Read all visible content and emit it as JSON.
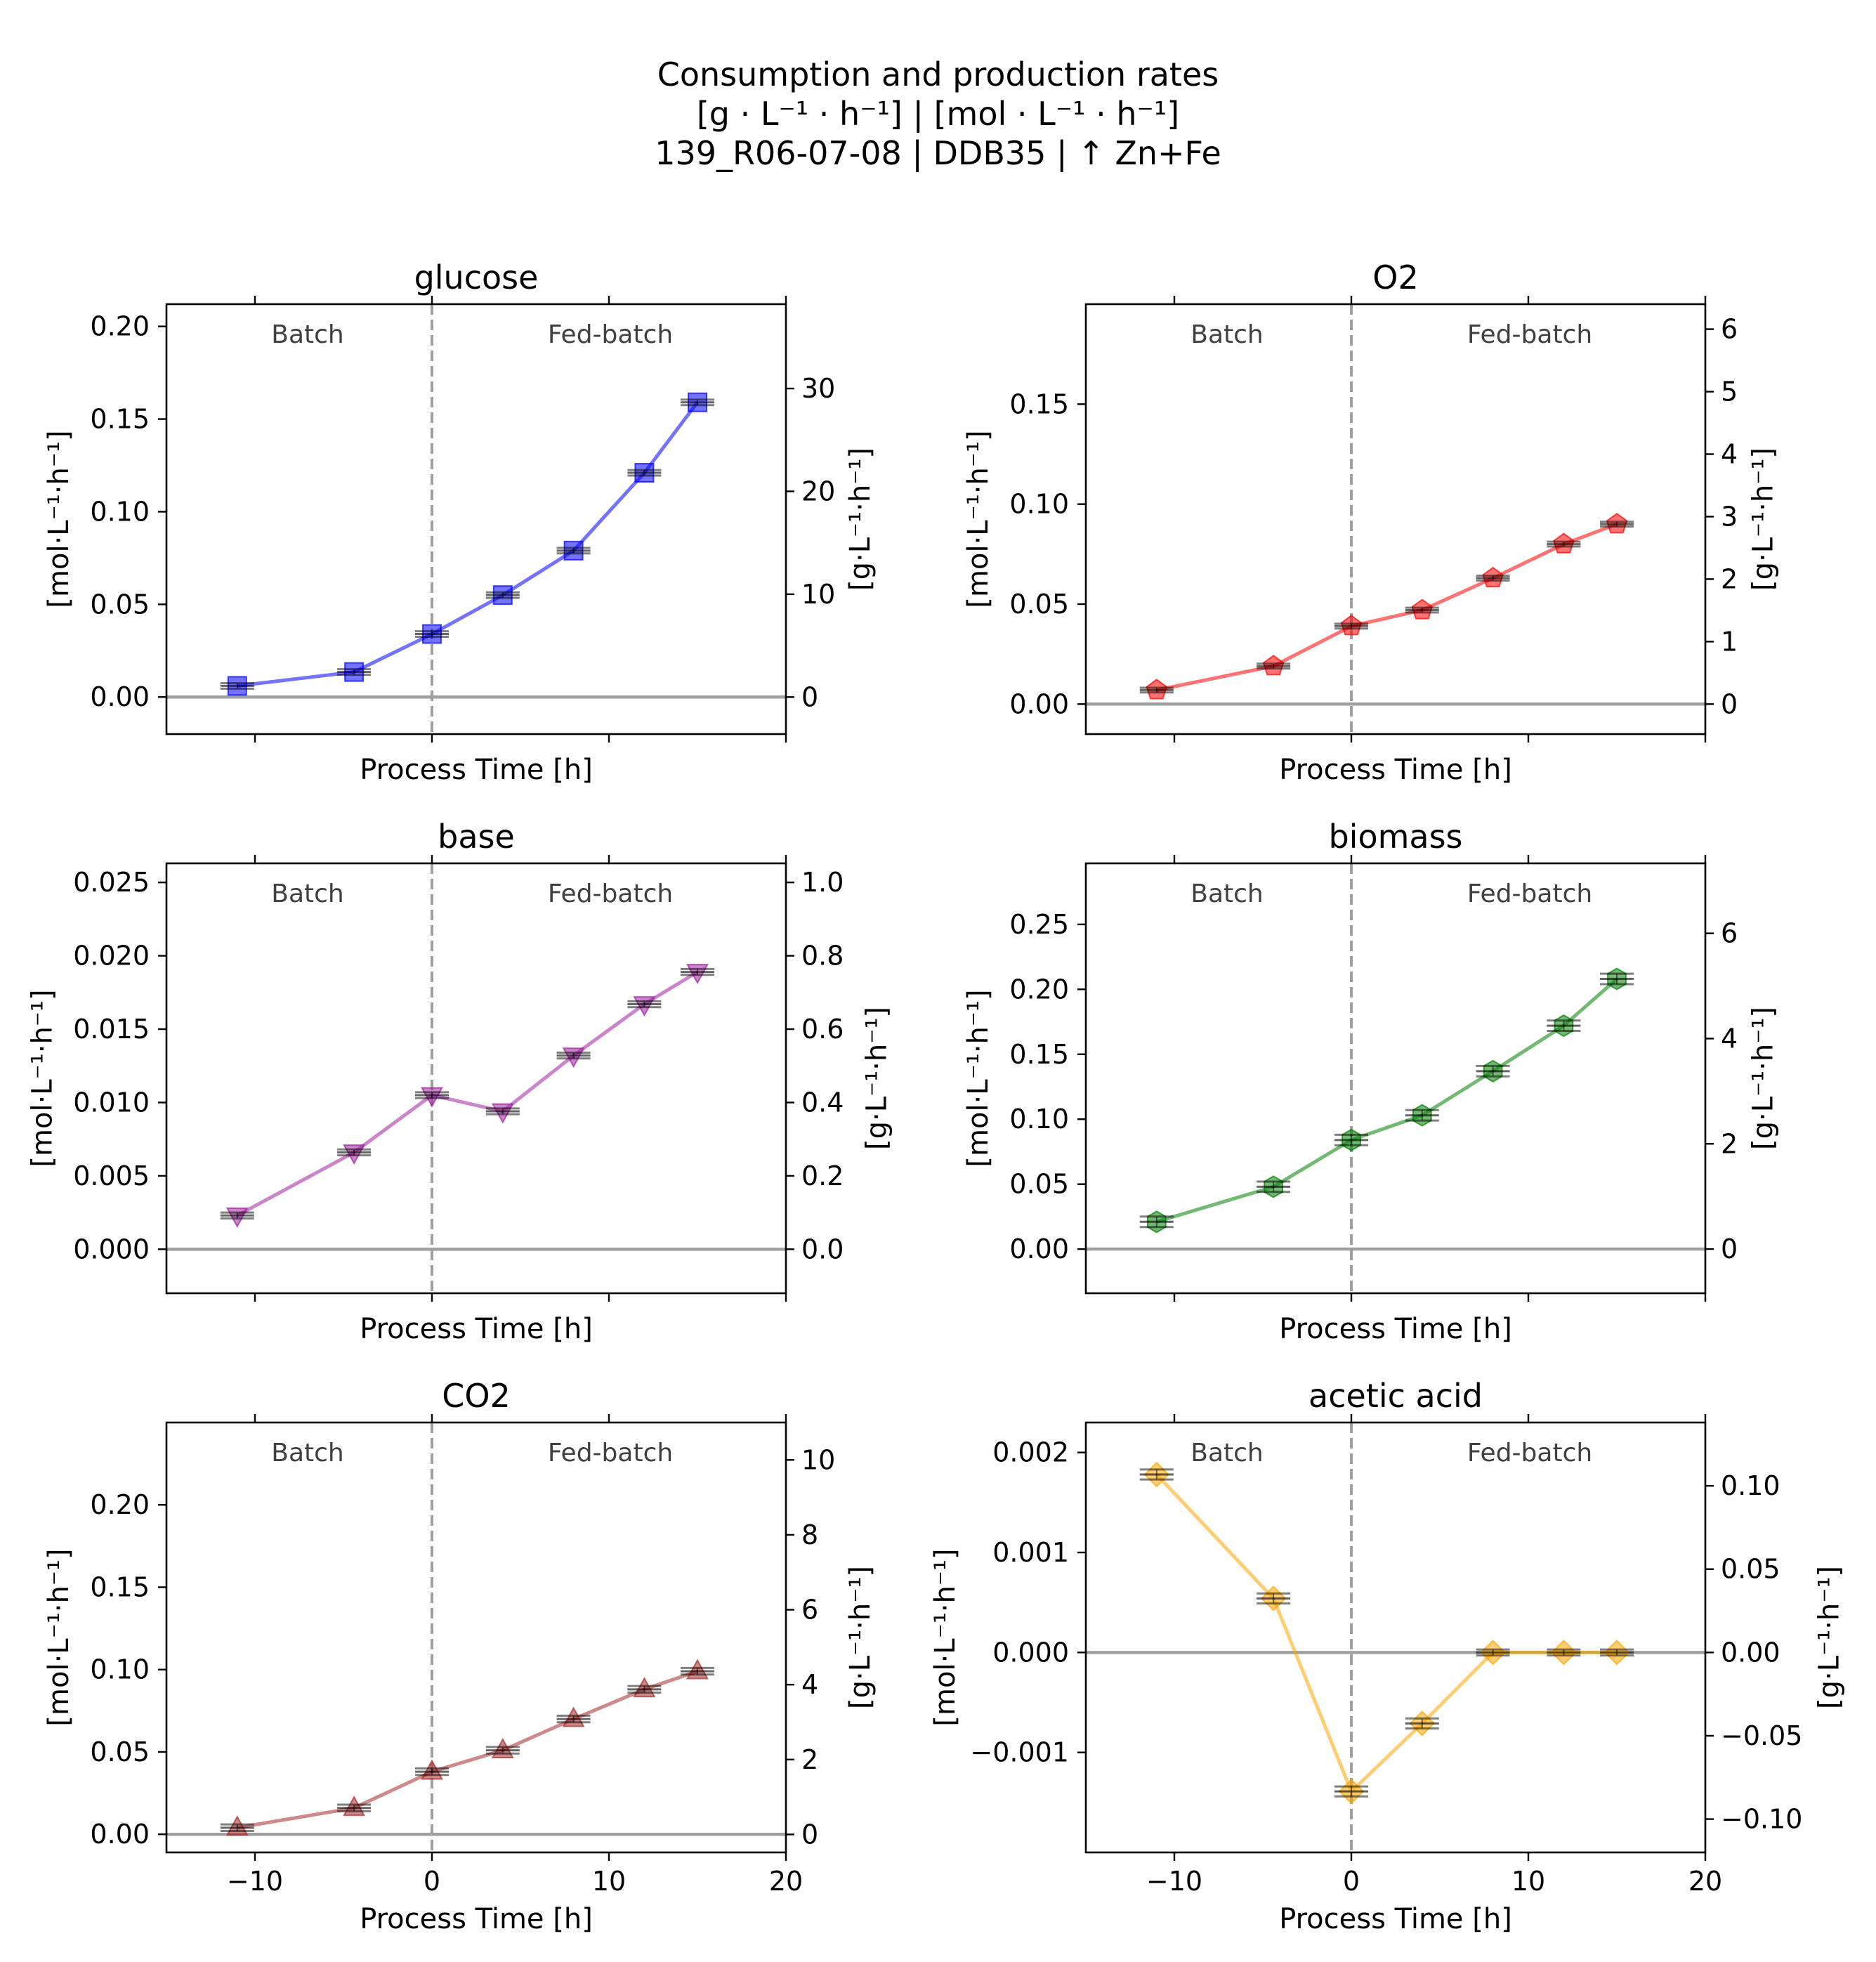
{
  "figure": {
    "title_lines": [
      "Consumption and production rates",
      "[g · L⁻¹ · h⁻¹]    |    [mol · L⁻¹ · h⁻¹]",
      "139_R06-07-08  |  DDB35  |  ↑ Zn+Fe"
    ]
  },
  "chart_data": [
    {
      "type": "line",
      "title": "glucose",
      "xlabel": "Process Time [h]",
      "ylabel": "[mol·L⁻¹·h⁻¹]",
      "y2label": "[g·L⁻¹·h⁻¹]",
      "xlim": [
        -15,
        20
      ],
      "xticks": [
        -10,
        0,
        10,
        20
      ],
      "xtick_labels_visible": false,
      "ylim": [
        -0.02,
        0.212
      ],
      "yticks": [
        0.0,
        0.05,
        0.1,
        0.15,
        0.2
      ],
      "ytick_labels": [
        "0.00",
        "0.05",
        "0.10",
        "0.15",
        "0.20"
      ],
      "y2lim": [
        -3.6,
        38.2
      ],
      "y2ticks": [
        0,
        10,
        20,
        30
      ],
      "y2tick_labels": [
        "0",
        "10",
        "20",
        "30"
      ],
      "phase_boundary_x": 0,
      "phase_labels": [
        "Batch",
        "Fed-batch"
      ],
      "color": "#0000ff",
      "marker": "square",
      "series": [
        {
          "x": [
            -11,
            -4.4,
            0,
            4,
            8,
            12,
            15
          ],
          "values": [
            0.006,
            0.0135,
            0.034,
            0.055,
            0.079,
            0.121,
            0.159
          ]
        }
      ],
      "errors": [
        0.0015,
        0.0015,
        0.0015,
        0.0015,
        0.0015,
        0.0015,
        0.0015
      ]
    },
    {
      "type": "line",
      "title": "O2",
      "xlabel": "Process Time [h]",
      "ylabel": "[mol·L⁻¹·h⁻¹]",
      "y2label": "[g·L⁻¹·h⁻¹]",
      "xlim": [
        -15,
        20
      ],
      "xticks": [
        -10,
        0,
        10,
        20
      ],
      "xtick_labels_visible": false,
      "ylim": [
        -0.015,
        0.2
      ],
      "yticks": [
        0.0,
        0.05,
        0.1,
        0.15
      ],
      "ytick_labels": [
        "0.00",
        "0.05",
        "0.10",
        "0.15"
      ],
      "y2lim": [
        -0.48,
        6.4
      ],
      "y2ticks": [
        0,
        1,
        2,
        3,
        4,
        5,
        6
      ],
      "y2tick_labels": [
        "0",
        "1",
        "2",
        "3",
        "4",
        "5",
        "6"
      ],
      "phase_boundary_x": 0,
      "phase_labels": [
        "Batch",
        "Fed-batch"
      ],
      "color": "#ff0000",
      "marker": "pentagon",
      "series": [
        {
          "x": [
            -11,
            -4.4,
            0,
            4,
            8,
            12,
            15
          ],
          "values": [
            0.007,
            0.019,
            0.039,
            0.047,
            0.063,
            0.08,
            0.09
          ]
        }
      ],
      "errors": [
        0.0012,
        0.0012,
        0.0012,
        0.0012,
        0.0012,
        0.0012,
        0.0012
      ]
    },
    {
      "type": "line",
      "title": "base",
      "xlabel": "Process Time [h]",
      "ylabel": "[mol·L⁻¹·h⁻¹]",
      "y2label": "[g·L⁻¹·h⁻¹]",
      "xlim": [
        -15,
        20
      ],
      "xticks": [
        -10,
        0,
        10,
        20
      ],
      "xtick_labels_visible": false,
      "ylim": [
        -0.003,
        0.0263
      ],
      "yticks": [
        0.0,
        0.005,
        0.01,
        0.015,
        0.02,
        0.025
      ],
      "ytick_labels": [
        "0.000",
        "0.005",
        "0.010",
        "0.015",
        "0.020",
        "0.025"
      ],
      "y2lim": [
        -0.12,
        1.052
      ],
      "y2ticks": [
        0.0,
        0.2,
        0.4,
        0.6,
        0.8,
        1.0
      ],
      "y2tick_labels": [
        "0.0",
        "0.2",
        "0.4",
        "0.6",
        "0.8",
        "1.0"
      ],
      "phase_boundary_x": 0,
      "phase_labels": [
        "Batch",
        "Fed-batch"
      ],
      "color": "#a020a0",
      "marker": "triangle-down",
      "series": [
        {
          "x": [
            -11,
            -4.4,
            0,
            4,
            8,
            12,
            15
          ],
          "values": [
            0.0023,
            0.0066,
            0.0105,
            0.0094,
            0.0132,
            0.0167,
            0.0189
          ]
        }
      ],
      "errors": [
        0.0002,
        0.0002,
        0.0002,
        0.0002,
        0.0002,
        0.0002,
        0.0002
      ]
    },
    {
      "type": "line",
      "title": "biomass",
      "xlabel": "Process Time [h]",
      "ylabel": "[mol·L⁻¹·h⁻¹]",
      "y2label": "[g·L⁻¹·h⁻¹]",
      "xlim": [
        -15,
        20
      ],
      "xticks": [
        -10,
        0,
        10,
        20
      ],
      "xtick_labels_visible": false,
      "ylim": [
        -0.034,
        0.297
      ],
      "yticks": [
        0.0,
        0.05,
        0.1,
        0.15,
        0.2,
        0.25
      ],
      "ytick_labels": [
        "0.00",
        "0.05",
        "0.10",
        "0.15",
        "0.20",
        "0.25"
      ],
      "y2lim": [
        -0.84,
        7.33
      ],
      "y2ticks": [
        0,
        2,
        4,
        6
      ],
      "y2tick_labels": [
        "0",
        "2",
        "4",
        "6"
      ],
      "phase_boundary_x": 0,
      "phase_labels": [
        "Batch",
        "Fed-batch"
      ],
      "color": "#008000",
      "marker": "hexagon",
      "series": [
        {
          "x": [
            -11,
            -4.4,
            0,
            4,
            8,
            12,
            15
          ],
          "values": [
            0.021,
            0.048,
            0.084,
            0.103,
            0.137,
            0.172,
            0.208
          ]
        }
      ],
      "errors": [
        0.004,
        0.004,
        0.004,
        0.004,
        0.004,
        0.004,
        0.004
      ]
    },
    {
      "type": "line",
      "title": "CO2",
      "xlabel": "Process Time [h]",
      "ylabel": "[mol·L⁻¹·h⁻¹]",
      "y2label": "[g·L⁻¹·h⁻¹]",
      "xlim": [
        -15,
        20
      ],
      "xticks": [
        -10,
        0,
        10,
        20
      ],
      "xtick_labels": [
        "−10",
        "0",
        "10",
        "20"
      ],
      "xtick_labels_visible": true,
      "ylim": [
        -0.011,
        0.25
      ],
      "yticks": [
        0.0,
        0.05,
        0.1,
        0.15,
        0.2
      ],
      "ytick_labels": [
        "0.00",
        "0.05",
        "0.10",
        "0.15",
        "0.20"
      ],
      "y2lim": [
        -0.48,
        11.0
      ],
      "y2ticks": [
        0,
        2,
        4,
        6,
        8,
        10
      ],
      "y2tick_labels": [
        "0",
        "2",
        "4",
        "6",
        "8",
        "10"
      ],
      "phase_boundary_x": 0,
      "phase_labels": [
        "Batch",
        "Fed-batch"
      ],
      "color": "#a52a2a",
      "marker": "triangle-up",
      "series": [
        {
          "x": [
            -11,
            -4.4,
            0,
            4,
            8,
            12,
            15
          ],
          "values": [
            0.004,
            0.016,
            0.038,
            0.051,
            0.07,
            0.088,
            0.099
          ]
        }
      ],
      "errors": [
        0.002,
        0.002,
        0.002,
        0.002,
        0.002,
        0.002,
        0.002
      ]
    },
    {
      "type": "line",
      "title": "acetic acid",
      "xlabel": "Process Time [h]",
      "ylabel": "[mol·L⁻¹·h⁻¹]",
      "y2label": "[g·L⁻¹·h⁻¹]",
      "xlim": [
        -15,
        20
      ],
      "xticks": [
        -10,
        0,
        10,
        20
      ],
      "xtick_labels": [
        "−10",
        "0",
        "10",
        "20"
      ],
      "xtick_labels_visible": true,
      "ylim": [
        -0.002,
        0.0023
      ],
      "yticks": [
        -0.001,
        0.0,
        0.001,
        0.002
      ],
      "ytick_labels": [
        "−0.001",
        "0.000",
        "0.001",
        "0.002"
      ],
      "y2lim": [
        -0.12,
        0.138
      ],
      "y2ticks": [
        -0.1,
        -0.05,
        0.0,
        0.05,
        0.1
      ],
      "y2tick_labels": [
        "−0.10",
        "−0.05",
        "0.00",
        "0.05",
        "0.10"
      ],
      "phase_boundary_x": 0,
      "phase_labels": [
        "Batch",
        "Fed-batch"
      ],
      "color": "#ffa500",
      "marker": "diamond",
      "series": [
        {
          "x": [
            -11,
            -4.4,
            0,
            4,
            8,
            12,
            15
          ],
          "values": [
            0.00178,
            0.00054,
            -0.00139,
            -0.00071,
            0.0,
            0.0,
            0.0
          ]
        }
      ],
      "errors": [
        5e-05,
        5e-05,
        5e-05,
        5e-05,
        3e-05,
        3e-05,
        3e-05
      ]
    }
  ]
}
